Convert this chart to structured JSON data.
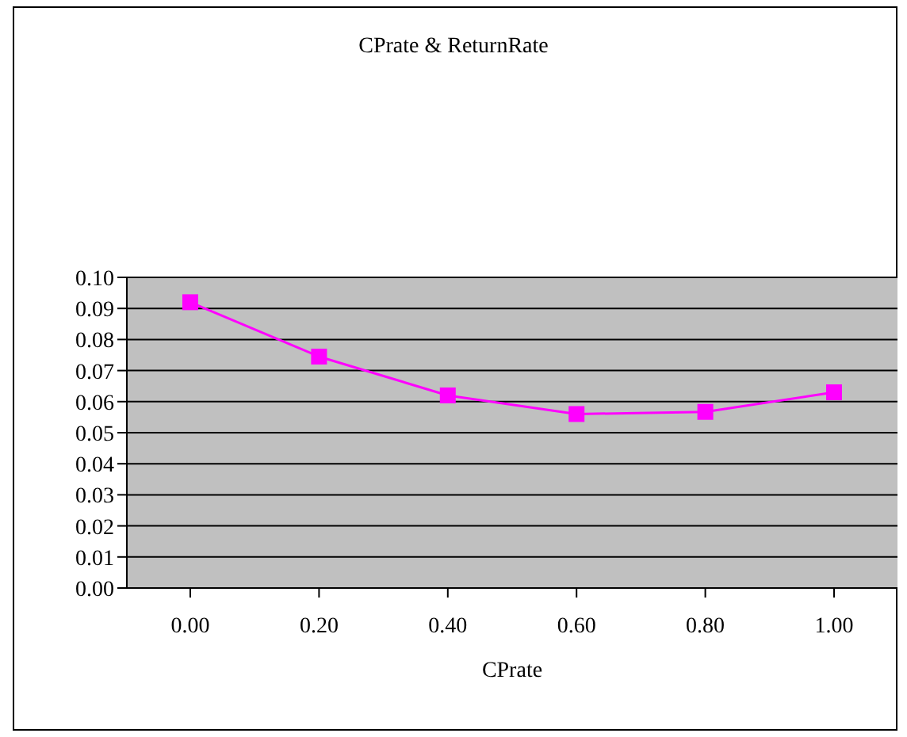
{
  "chart_data": {
    "type": "line",
    "title": "CPrate & ReturnRate",
    "xlabel": "CPrate",
    "categories": [
      "0.00",
      "0.20",
      "0.40",
      "0.60",
      "0.80",
      "1.00"
    ],
    "series": [
      {
        "color": "#ff00ff",
        "values": [
          0.092,
          0.0745,
          0.062,
          0.056,
          0.0567,
          0.063
        ]
      }
    ],
    "ylim": [
      0,
      0.1
    ],
    "yticks": [
      {
        "value": 0,
        "label": "0.00"
      },
      {
        "value": 0.01,
        "label": "0.01"
      },
      {
        "value": 0.02,
        "label": "0.02"
      },
      {
        "value": 0.03,
        "label": "0.03"
      },
      {
        "value": 0.04,
        "label": "0.04"
      },
      {
        "value": 0.05,
        "label": "0.05"
      },
      {
        "value": 0.06,
        "label": "0.06"
      },
      {
        "value": 0.07,
        "label": "0.07"
      },
      {
        "value": 0.08,
        "label": "0.08"
      },
      {
        "value": 0.09,
        "label": "0.09"
      },
      {
        "value": 0.1,
        "label": "0.10"
      }
    ],
    "grid": "y",
    "marker": "square",
    "line_style": "solid",
    "legend": false
  }
}
